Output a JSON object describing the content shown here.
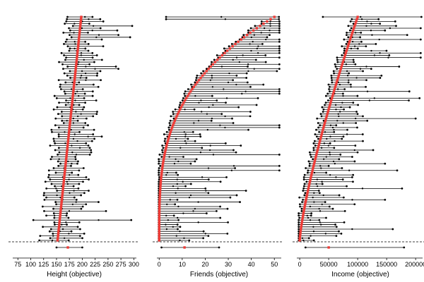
{
  "chart_data": [
    {
      "type": "scatter",
      "variant": "range-dot-plot",
      "xlabel": "Height (objective)",
      "xticks": [
        75,
        100,
        125,
        150,
        175,
        200,
        225,
        250,
        275,
        300
      ],
      "xlim": [
        65,
        305
      ],
      "row_trend": {
        "low": 152,
        "high": 198
      },
      "row_spread": {
        "left": 28,
        "right": 30
      },
      "summary_row": {
        "left": 150,
        "marker": 172,
        "right": 200
      },
      "outlier_rows": [
        {
          "row": 90,
          "left": 105,
          "right": 295
        }
      ],
      "colors": {
        "marker": "#ee3a35",
        "line": "#000000"
      }
    },
    {
      "type": "scatter",
      "variant": "range-dot-plot",
      "xlabel": "Friends (objective)",
      "xticks": [
        0,
        10,
        20,
        30,
        40,
        50
      ],
      "xlim": [
        -1,
        53
      ],
      "row_trend": {
        "low": 0,
        "high": 50
      },
      "row_spread": {
        "left": 2,
        "right": 20
      },
      "summary_row": {
        "left": 1,
        "marker": 11,
        "right": 26
      },
      "outlier_rows": [
        {
          "row": 0,
          "left": 3,
          "right": 52
        },
        {
          "row": 1,
          "left": 3,
          "right": 52
        }
      ],
      "colors": {
        "marker": "#ee3a35",
        "line": "#000000"
      }
    },
    {
      "type": "scatter",
      "variant": "range-dot-plot",
      "xlabel": "Income (objective)",
      "xticks": [
        0,
        50000,
        100000,
        150000,
        200000
      ],
      "xlim": [
        -5000,
        212000
      ],
      "row_trend": {
        "low": 0,
        "high": 100000
      },
      "row_spread": {
        "left": 10000,
        "right": 45000
      },
      "summary_row": {
        "left": 10000,
        "marker": 50000,
        "right": 180000
      },
      "outlier_rows": [
        {
          "row": 0,
          "left": 40000,
          "right": 210000
        },
        {
          "row": 45,
          "left": 30000,
          "right": 200000
        }
      ],
      "colors": {
        "marker": "#ee3a35",
        "line": "#000000"
      }
    }
  ]
}
